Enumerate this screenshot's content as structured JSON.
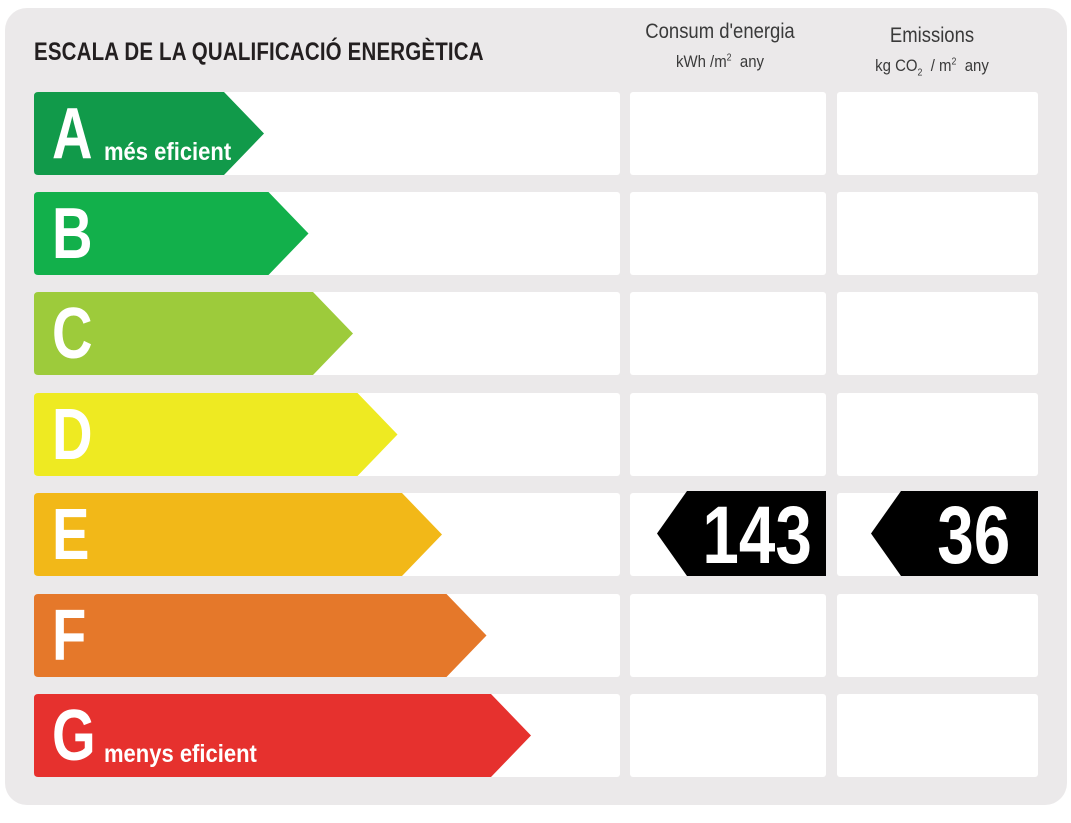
{
  "title": "ESCALA DE LA QUALIFICACIÓ ENERGÈTICA",
  "columns": [
    {
      "heading": "Consum d'energia",
      "unit_main": "kWh /m",
      "unit_sup": "2",
      "unit_tail": "any"
    },
    {
      "heading": "Emissions",
      "unit_pre": "kg CO",
      "unit_sub": "2",
      "unit_mid": " / m",
      "unit_sup": "2",
      "unit_tail": "any"
    }
  ],
  "ratings": [
    {
      "letter": "A",
      "label": "més eficient",
      "color": "#119a4a"
    },
    {
      "letter": "B",
      "label": "",
      "color": "#12b04b"
    },
    {
      "letter": "C",
      "label": "",
      "color": "#9dcb3b"
    },
    {
      "letter": "D",
      "label": "",
      "color": "#eeea22"
    },
    {
      "letter": "E",
      "label": "",
      "color": "#f2b818"
    },
    {
      "letter": "F",
      "label": "",
      "color": "#e5782a"
    },
    {
      "letter": "G",
      "label": "menys eficient",
      "color": "#e6312e"
    }
  ],
  "result": {
    "rating": "E",
    "energy_consumption": "143",
    "emissions": "36",
    "badge_color": "#000000"
  }
}
